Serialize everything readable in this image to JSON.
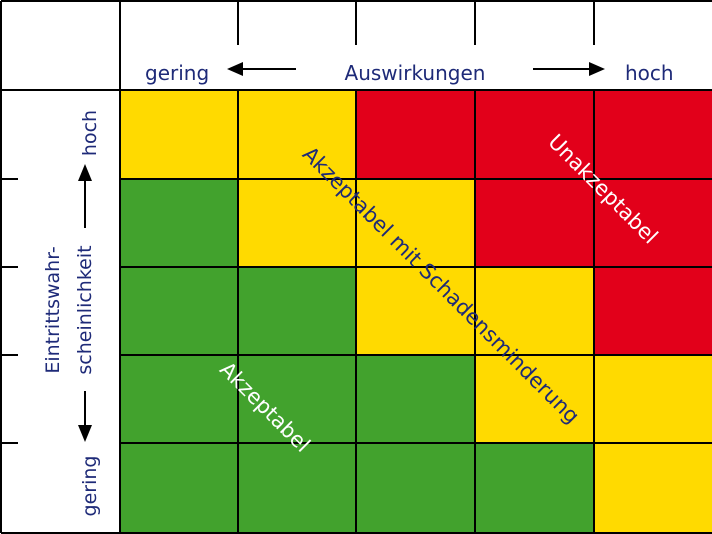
{
  "colors": {
    "green": "#42A22D",
    "yellow": "#FFDA00",
    "red": "#E2001A",
    "grid": "#000000",
    "label_blue": "#1E2A78",
    "zone_text": "#FFFFFF",
    "zone_text_mid": "#1E2A78"
  },
  "impact_axis": {
    "low": "gering",
    "title": "Auswirkungen",
    "high": "hoch"
  },
  "probability_axis": {
    "high": "hoch",
    "title_line1": "Eintrittswahr-",
    "title_line2": "scheinlichkeit",
    "low": "gering"
  },
  "zones": {
    "acceptable": "Akzeptabel",
    "mitigation": "Akzeptabel mit Schadensminderung",
    "unacceptable": "Unakzeptabel"
  },
  "grid": {
    "rows": [
      [
        "yellow",
        "yellow",
        "red",
        "red",
        "red"
      ],
      [
        "green",
        "yellow",
        "yellow",
        "red",
        "red"
      ],
      [
        "green",
        "green",
        "yellow",
        "yellow",
        "red"
      ],
      [
        "green",
        "green",
        "green",
        "yellow",
        "yellow"
      ],
      [
        "green",
        "green",
        "green",
        "green",
        "yellow"
      ]
    ]
  }
}
